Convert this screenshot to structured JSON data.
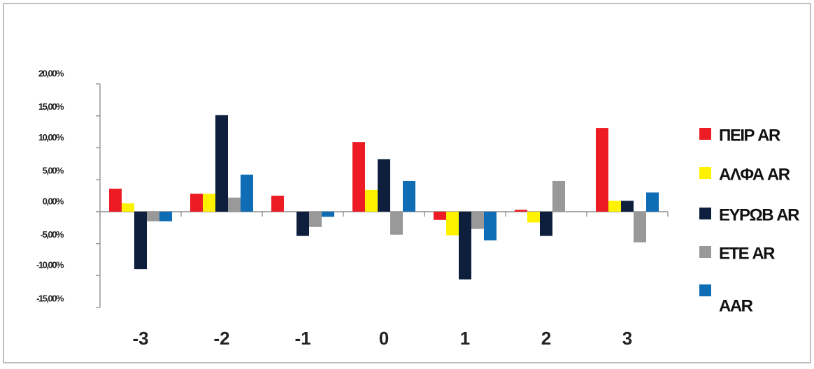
{
  "chart_data": {
    "type": "bar",
    "categories": [
      "-3",
      "-2",
      "-1",
      "0",
      "1",
      "2",
      "3"
    ],
    "series": [
      {
        "name": "ΠΕΙΡ AR",
        "color": "#ed1c24",
        "values": [
          3.6,
          2.8,
          2.5,
          10.9,
          -1.3,
          0.3,
          13.1
        ]
      },
      {
        "name": "ΑΛΦΑ AR",
        "color": "#fff200",
        "values": [
          1.3,
          2.8,
          0,
          3.4,
          -3.7,
          -1.7,
          1.7
        ]
      },
      {
        "name": "ΕΥΡΩΒ AR",
        "color": "#0d1f3c",
        "values": [
          -9.0,
          15.1,
          -3.8,
          8.2,
          -10.6,
          -3.8,
          1.7
        ]
      },
      {
        "name": "ΕΤΕ AR",
        "color": "#999999",
        "values": [
          -1.5,
          2.2,
          -2.4,
          -3.6,
          -2.7,
          4.8,
          -4.8
        ]
      },
      {
        "name": "AAR",
        "color": "#0f6db6",
        "values": [
          -1.5,
          5.8,
          -0.8,
          4.8,
          -4.5,
          0,
          3.0
        ]
      }
    ],
    "ylim": [
      -15,
      20
    ],
    "yticks": [
      {
        "value": -15,
        "label": "-15,00%"
      },
      {
        "value": -10,
        "label": "-10,00%"
      },
      {
        "value": -5,
        "label": "-5,00%"
      },
      {
        "value": 0,
        "label": "0,00%"
      },
      {
        "value": 5,
        "label": "5,00%"
      },
      {
        "value": 10,
        "label": "10,00%"
      },
      {
        "value": 15,
        "label": "15,00%"
      },
      {
        "value": 20,
        "label": "20,00%"
      }
    ],
    "grid": false,
    "legend": "right"
  }
}
